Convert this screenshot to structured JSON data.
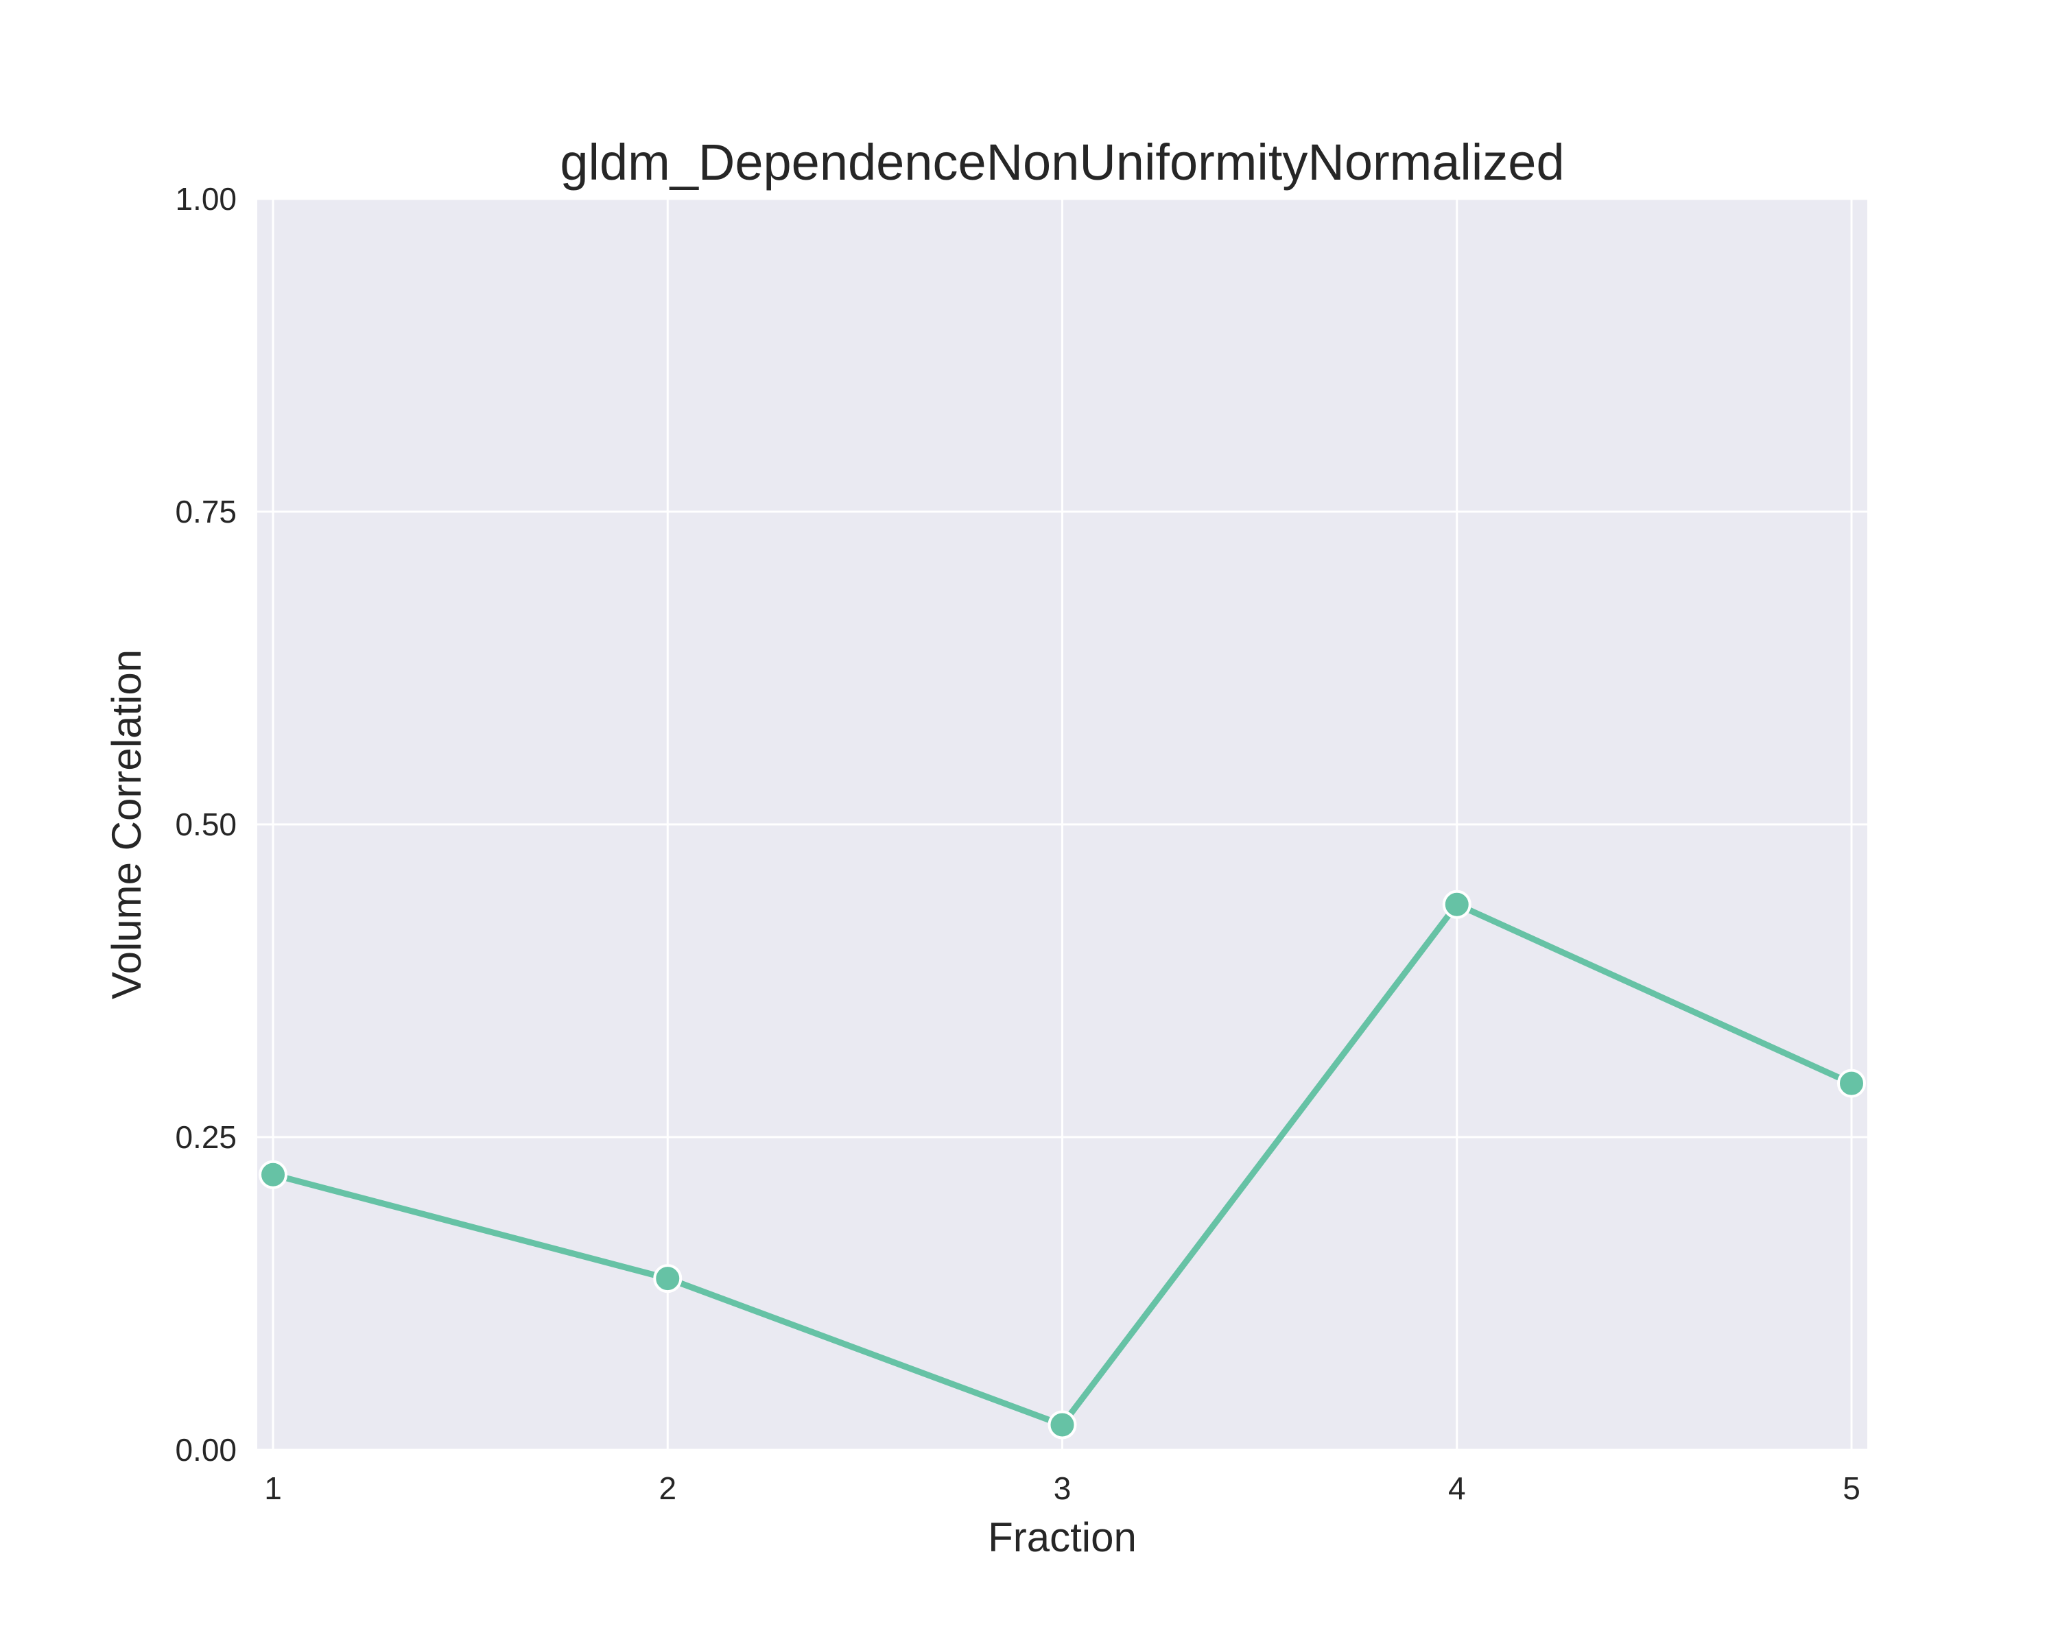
{
  "chart_data": {
    "type": "line",
    "title": "gldm_DependenceNonUniformityNormalized",
    "xlabel": "Fraction",
    "ylabel": "Volume Correlation",
    "x": [
      1,
      2,
      3,
      4,
      5
    ],
    "y": [
      0.22,
      0.137,
      0.02,
      0.436,
      0.293
    ],
    "xlim": [
      0.96,
      5.04
    ],
    "ylim": [
      0,
      1
    ],
    "xticks": [
      1,
      2,
      3,
      4,
      5
    ],
    "xtick_labels": [
      "1",
      "2",
      "3",
      "4",
      "5"
    ],
    "yticks": [
      0,
      0.25,
      0.5,
      0.75,
      1.0
    ],
    "ytick_labels": [
      "0.00",
      "0.25",
      "0.50",
      "0.75",
      "1.00"
    ],
    "grid": true,
    "colors": {
      "line": "#66c2a5",
      "background": "#eaeaf2",
      "grid": "#ffffff"
    }
  }
}
